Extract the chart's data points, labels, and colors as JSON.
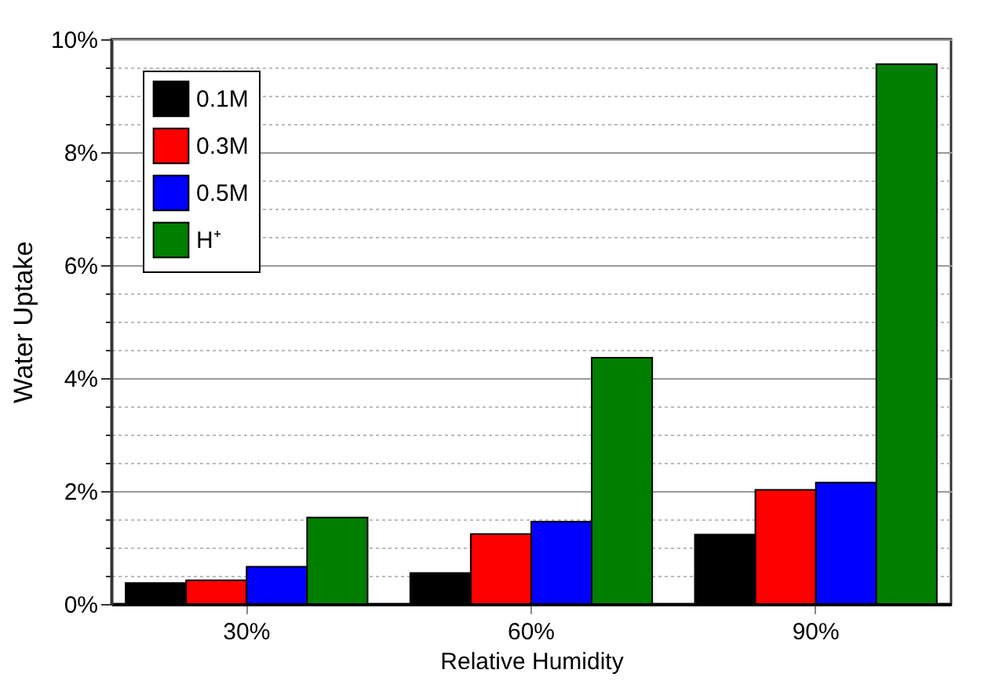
{
  "chart_data": {
    "type": "bar",
    "xlabel": "Relative Humidity",
    "ylabel": "Water Uptake",
    "categories": [
      "30%",
      "60%",
      "90%"
    ],
    "series": [
      {
        "name": "0.1M",
        "color": "#000000",
        "values": [
          0.37,
          0.55,
          1.23
        ]
      },
      {
        "name": "0.3M",
        "color": "#ff0000",
        "values": [
          0.42,
          1.24,
          2.02
        ]
      },
      {
        "name": "0.5M",
        "color": "#0000ff",
        "values": [
          0.66,
          1.46,
          2.15
        ]
      },
      {
        "name": "H⁺",
        "color": "#007f00",
        "values": [
          1.53,
          4.36,
          9.56
        ]
      }
    ],
    "ylim": [
      0,
      10
    ],
    "yticks": [
      {
        "value": 0,
        "label": "0%"
      },
      {
        "value": 0.5,
        "label": null
      },
      {
        "value": 1,
        "label": null
      },
      {
        "value": 1.5,
        "label": null
      },
      {
        "value": 2,
        "label": "2%"
      },
      {
        "value": 2.5,
        "label": null
      },
      {
        "value": 3,
        "label": null
      },
      {
        "value": 3.5,
        "label": null
      },
      {
        "value": 4,
        "label": "4%"
      },
      {
        "value": 4.5,
        "label": null
      },
      {
        "value": 5,
        "label": null
      },
      {
        "value": 5.5,
        "label": null
      },
      {
        "value": 6,
        "label": "6%"
      },
      {
        "value": 6.5,
        "label": null
      },
      {
        "value": 7,
        "label": null
      },
      {
        "value": 7.5,
        "label": null
      },
      {
        "value": 8,
        "label": "8%"
      },
      {
        "value": 8.5,
        "label": null
      },
      {
        "value": 9,
        "label": null
      },
      {
        "value": 9.5,
        "label": null
      },
      {
        "value": 10,
        "label": "10%"
      }
    ],
    "grid": "y",
    "legend": "top left"
  }
}
